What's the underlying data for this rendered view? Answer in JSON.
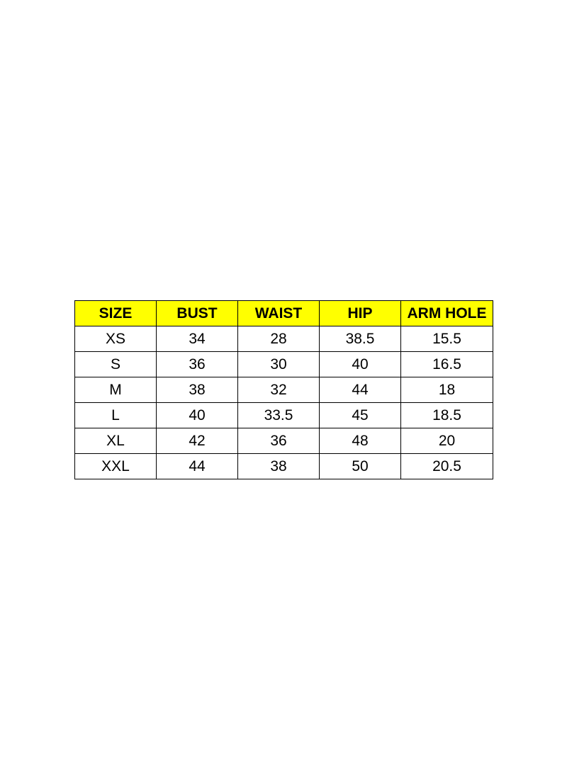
{
  "header_color": "#ffff00",
  "table": {
    "headers": [
      "SIZE",
      "BUST",
      "WAIST",
      "HIP",
      "ARM HOLE"
    ],
    "rows": [
      [
        "XS",
        "34",
        "28",
        "38.5",
        "15.5"
      ],
      [
        "S",
        "36",
        "30",
        "40",
        "16.5"
      ],
      [
        "M",
        "38",
        "32",
        "44",
        "18"
      ],
      [
        "L",
        "40",
        "33.5",
        "45",
        "18.5"
      ],
      [
        "XL",
        "42",
        "36",
        "48",
        "20"
      ],
      [
        "XXL",
        "44",
        "38",
        "50",
        "20.5"
      ]
    ]
  }
}
